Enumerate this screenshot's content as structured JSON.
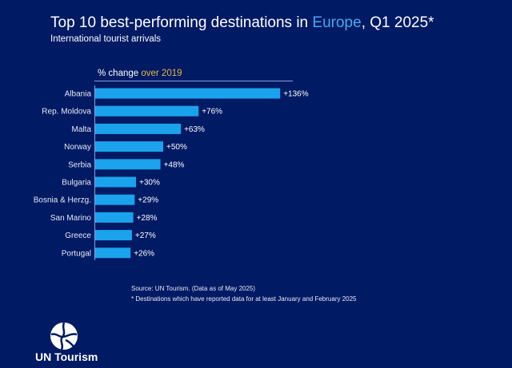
{
  "header": {
    "title_prefix": "Top 10 best-performing destinations in ",
    "title_highlight": "Europe",
    "title_suffix": ", Q1 2025*",
    "subtitle": "International tourist arrivals"
  },
  "footer": {
    "source": "Source: UN Tourism. (Data as of May 2025)",
    "note": "* Destinations which have reported data for at least January and February 2025",
    "brand": "UN Tourism"
  },
  "colors": {
    "background": "#001a64",
    "bar": "#1aa3ec",
    "highlight_blue": "#4aa8f0",
    "highlight_gold": "#e8b84a"
  },
  "chart_data": {
    "type": "bar",
    "orientation": "horizontal",
    "axis_title_prefix": "% change ",
    "axis_title_highlight": "over 2019",
    "categories": [
      "Albania",
      "Rep. Moldova",
      "Malta",
      "Norway",
      "Serbia",
      "Bulgaria",
      "Bosnia & Herzg.",
      "San Marino",
      "Greece",
      "Portugal"
    ],
    "values": [
      136,
      76,
      63,
      50,
      48,
      30,
      29,
      28,
      27,
      26
    ],
    "data_labels": [
      "+136%",
      "+76%",
      "+63%",
      "+50%",
      "+48%",
      "+30%",
      "+29%",
      "+28%",
      "+27%",
      "+26%"
    ],
    "grid": false
  }
}
